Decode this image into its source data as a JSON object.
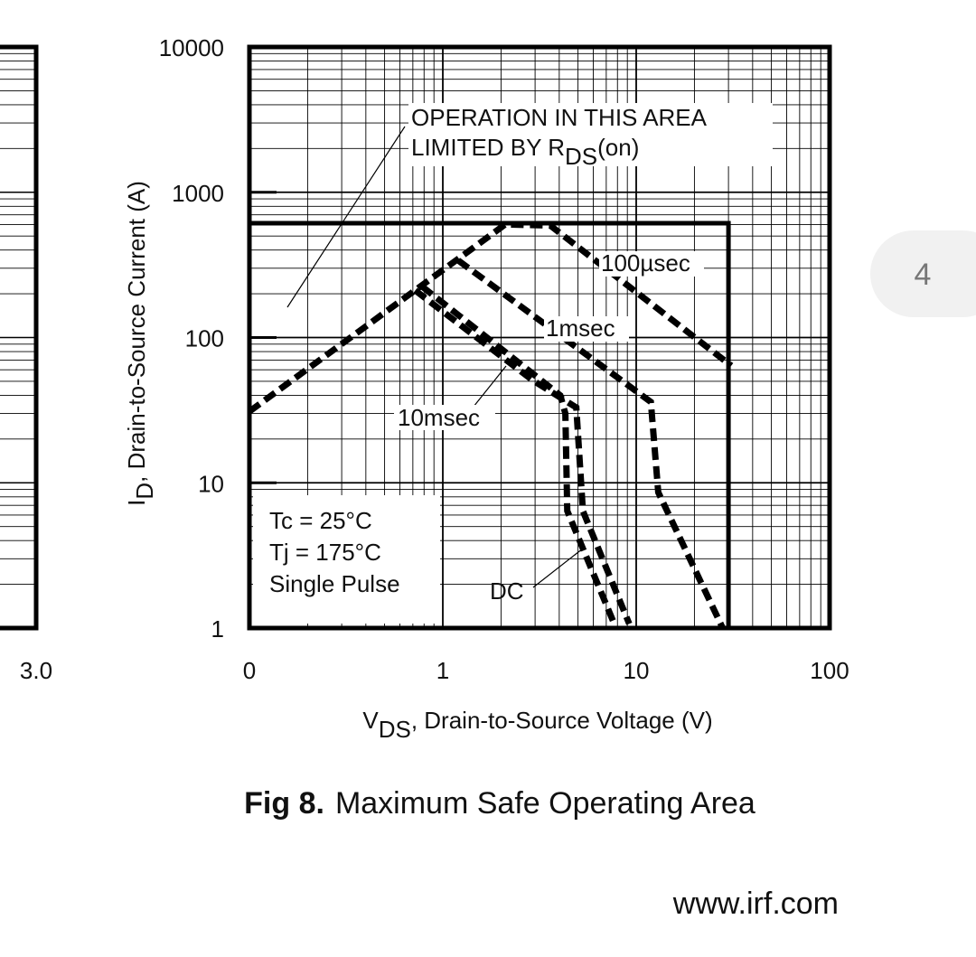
{
  "chart_data": {
    "type": "line",
    "title": "Maximum Safe Operating Area",
    "figure_number": "Fig 8.",
    "x_label": [
      "V",
      "DS",
      ", Drain-to-Source Voltage (V)"
    ],
    "y_label": [
      "I",
      "D",
      ", Drain-to-Source Current (A)"
    ],
    "log_x": true,
    "log_y": true,
    "grid": true,
    "minor_grid": true,
    "xlim": [
      0.1,
      100
    ],
    "ylim": [
      1,
      10000
    ],
    "xticks": [
      {
        "value": 0.1,
        "label": "0"
      },
      1,
      10,
      100
    ],
    "yticks": [
      1,
      10,
      100,
      1000,
      10000
    ],
    "annotation": [
      "OPERATION IN THIS AREA",
      "LIMITED BY R",
      "DS",
      "(on)"
    ],
    "conditions": [
      "Tc = 25°C",
      "Tj = 175°C",
      "Single Pulse"
    ],
    "limit_line": {
      "color": "#000000",
      "x": [
        0.1,
        30,
        30
      ],
      "values": [
        612,
        612,
        1
      ]
    },
    "series": [
      {
        "name": "100µsec",
        "color": "#000000",
        "x": [
          0.1,
          2.1,
          3.6,
          31
        ],
        "values": [
          31,
          600,
          590,
          64
        ]
      },
      {
        "name": "1msec",
        "color": "#000000",
        "x": [
          1.2,
          11.9,
          13,
          28
        ],
        "values": [
          340,
          36,
          8.6,
          1
        ]
      },
      {
        "name": "10msec",
        "color": "#000000",
        "x": [
          0.78,
          4.05,
          4.3,
          4.4,
          7.7
        ],
        "values": [
          225,
          40,
          30,
          6.4,
          1.07
        ]
      },
      {
        "name": "DC",
        "color": "#000000",
        "x": [
          0.72,
          2.9,
          4.9,
          5.3,
          9.2
        ],
        "values": [
          211,
          51,
          33,
          6.4,
          1.07
        ]
      }
    ]
  },
  "left_fragment": {
    "xtick": "3.0"
  },
  "footer": "www.irf.com",
  "page_badge": "4"
}
